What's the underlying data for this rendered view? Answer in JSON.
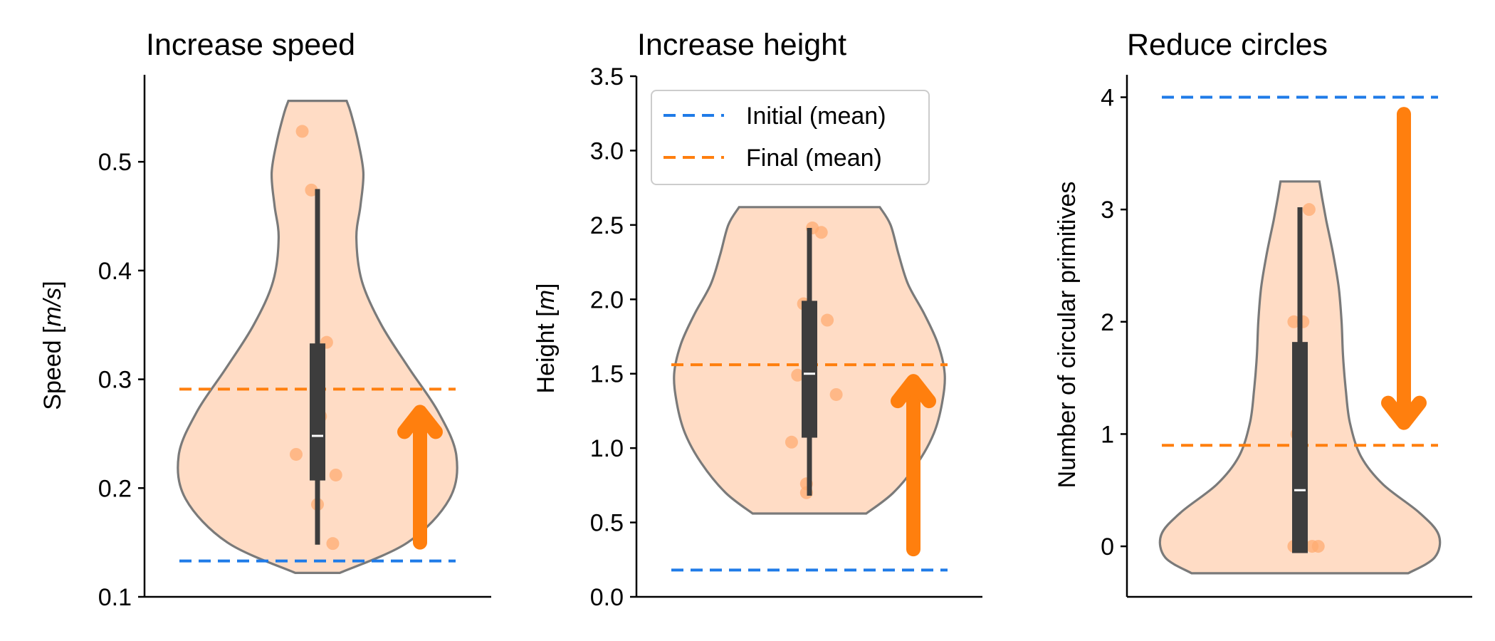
{
  "colors": {
    "initial": "#1f7be8",
    "final": "#ff7f0e",
    "violin_fill": "#ffdcc5",
    "violin_edge": "#7a7a7a",
    "box": "#3d3d3d",
    "points": "#ffac72"
  },
  "legend": {
    "initial_label": "Initial (mean)",
    "final_label": "Final (mean)"
  },
  "chart_data": [
    {
      "type": "violin",
      "title": "Increase speed",
      "ylabel_prefix": "Speed [",
      "ylabel_unit": "m/s",
      "ylabel_suffix": "]",
      "ylim": [
        0.1,
        0.58
      ],
      "ticks": [
        0.1,
        0.2,
        0.3,
        0.4,
        0.5
      ],
      "tick_labels": [
        "0.1",
        "0.2",
        "0.3",
        "0.4",
        "0.5"
      ],
      "initial_mean": 0.133,
      "final_mean": 0.291,
      "arrow": {
        "direction": "up",
        "from": 0.15,
        "to": 0.27
      },
      "box": {
        "q1": 0.207,
        "q3": 0.333,
        "median": 0.248,
        "whisker_low": 0.148,
        "whisker_high": 0.475
      },
      "points": [
        {
          "dx": -0.05,
          "v": 0.528
        },
        {
          "dx": -0.02,
          "v": 0.474
        },
        {
          "dx": 0.03,
          "v": 0.334
        },
        {
          "dx": 0.01,
          "v": 0.266
        },
        {
          "dx": -0.07,
          "v": 0.231
        },
        {
          "dx": 0.06,
          "v": 0.212
        },
        {
          "dx": 0.0,
          "v": 0.185
        },
        {
          "dx": 0.05,
          "v": 0.149
        }
      ],
      "density": [
        {
          "v": 0.122,
          "w": 0.16
        },
        {
          "v": 0.15,
          "w": 0.65
        },
        {
          "v": 0.19,
          "w": 0.95
        },
        {
          "v": 0.23,
          "w": 1.0
        },
        {
          "v": 0.27,
          "w": 0.87
        },
        {
          "v": 0.31,
          "w": 0.66
        },
        {
          "v": 0.35,
          "w": 0.46
        },
        {
          "v": 0.39,
          "w": 0.32
        },
        {
          "v": 0.43,
          "w": 0.28
        },
        {
          "v": 0.46,
          "w": 0.31
        },
        {
          "v": 0.49,
          "w": 0.33
        },
        {
          "v": 0.52,
          "w": 0.29
        },
        {
          "v": 0.545,
          "w": 0.24
        },
        {
          "v": 0.556,
          "w": 0.21
        }
      ],
      "legend": false
    },
    {
      "type": "violin",
      "title": "Increase height",
      "ylabel_prefix": "Height [",
      "ylabel_unit": "m",
      "ylabel_suffix": "]",
      "ylim": [
        0.0,
        3.5
      ],
      "ticks": [
        0.0,
        0.5,
        1.0,
        1.5,
        2.0,
        2.5,
        3.0,
        3.5
      ],
      "tick_labels": [
        "0.0",
        "0.5",
        "1.0",
        "1.5",
        "2.0",
        "2.5",
        "3.0",
        "3.5"
      ],
      "initial_mean": 0.18,
      "final_mean": 1.56,
      "arrow": {
        "direction": "up",
        "from": 0.32,
        "to": 1.45
      },
      "box": {
        "q1": 1.07,
        "q3": 1.99,
        "median": 1.5,
        "whisker_low": 0.68,
        "whisker_high": 2.48
      },
      "points": [
        {
          "dx": 0.01,
          "v": 2.48
        },
        {
          "dx": 0.04,
          "v": 2.45
        },
        {
          "dx": -0.02,
          "v": 1.97
        },
        {
          "dx": 0.06,
          "v": 1.86
        },
        {
          "dx": -0.04,
          "v": 1.49
        },
        {
          "dx": 0.09,
          "v": 1.36
        },
        {
          "dx": -0.06,
          "v": 1.04
        },
        {
          "dx": -0.01,
          "v": 0.76
        },
        {
          "dx": -0.01,
          "v": 0.7
        }
      ],
      "density": [
        {
          "v": 0.56,
          "w": 0.42
        },
        {
          "v": 0.7,
          "w": 0.62
        },
        {
          "v": 0.9,
          "w": 0.8
        },
        {
          "v": 1.1,
          "w": 0.92
        },
        {
          "v": 1.3,
          "w": 0.98
        },
        {
          "v": 1.5,
          "w": 1.0
        },
        {
          "v": 1.7,
          "w": 0.95
        },
        {
          "v": 1.9,
          "w": 0.85
        },
        {
          "v": 2.1,
          "w": 0.73
        },
        {
          "v": 2.3,
          "w": 0.66
        },
        {
          "v": 2.5,
          "w": 0.6
        },
        {
          "v": 2.62,
          "w": 0.52
        }
      ],
      "legend": true
    },
    {
      "type": "violin",
      "title": "Reduce circles",
      "ylabel_prefix": "Number of circular primitives",
      "ylabel_unit": "",
      "ylabel_suffix": "",
      "ylim": [
        -0.45,
        4.2
      ],
      "ticks": [
        0,
        1,
        2,
        3,
        4
      ],
      "tick_labels": [
        "0",
        "1",
        "2",
        "3",
        "4"
      ],
      "initial_mean": 4.0,
      "final_mean": 0.9,
      "arrow": {
        "direction": "down",
        "from": 3.85,
        "to": 1.1
      },
      "box": {
        "q1": -0.06,
        "q3": 1.82,
        "median": 0.5,
        "whisker_low": -0.06,
        "whisker_high": 3.02
      },
      "points": [
        {
          "dx": 0.03,
          "v": 3.0
        },
        {
          "dx": -0.02,
          "v": 2.0
        },
        {
          "dx": 0.01,
          "v": 2.0
        },
        {
          "dx": -0.01,
          "v": 1.0
        },
        {
          "dx": 0.0,
          "v": 1.0
        },
        {
          "dx": -0.02,
          "v": 0.0
        },
        {
          "dx": 0.04,
          "v": 0.0
        },
        {
          "dx": 0.06,
          "v": 0.0
        }
      ],
      "density": [
        {
          "v": -0.24,
          "w": 0.78
        },
        {
          "v": -0.1,
          "w": 0.97
        },
        {
          "v": 0.1,
          "w": 1.0
        },
        {
          "v": 0.3,
          "w": 0.86
        },
        {
          "v": 0.55,
          "w": 0.6
        },
        {
          "v": 0.8,
          "w": 0.44
        },
        {
          "v": 1.1,
          "w": 0.36
        },
        {
          "v": 1.4,
          "w": 0.33
        },
        {
          "v": 1.7,
          "w": 0.31
        },
        {
          "v": 2.0,
          "w": 0.3
        },
        {
          "v": 2.3,
          "w": 0.28
        },
        {
          "v": 2.6,
          "w": 0.24
        },
        {
          "v": 2.9,
          "w": 0.19
        },
        {
          "v": 3.1,
          "w": 0.16
        },
        {
          "v": 3.25,
          "w": 0.14
        }
      ],
      "legend": false
    }
  ]
}
